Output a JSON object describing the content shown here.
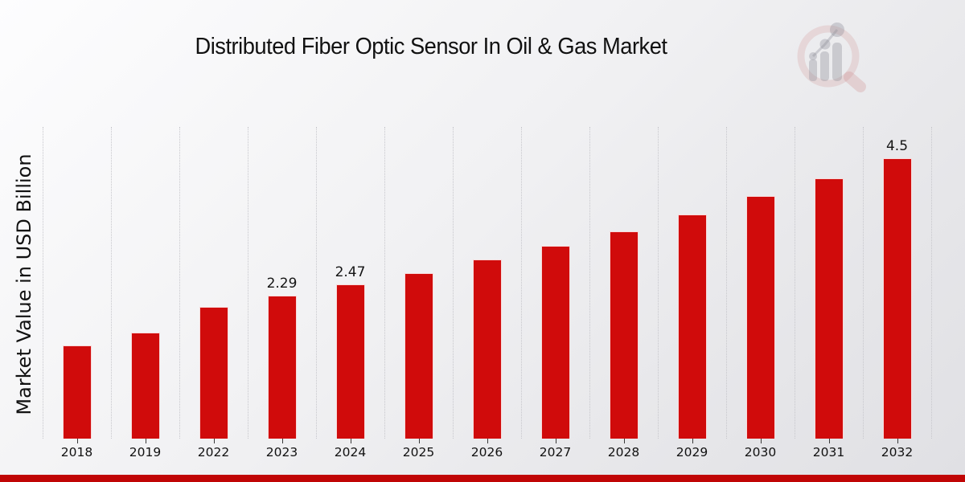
{
  "title": "Distributed Fiber Optic Sensor In Oil & Gas Market",
  "ylabel": "Market Value in USD Billion",
  "colors": {
    "bar": "#d00b0b",
    "bottom_strip": "#c00505",
    "gridline": "#c7c7cc",
    "title_text": "#111111"
  },
  "logo": {
    "name": "magnifier-bar-chart-watermark",
    "ring_color": "rgba(201,125,125,0.22)",
    "handle_color": "rgba(201,125,125,0.28)",
    "bars_color": "rgba(138,138,146,0.38)"
  },
  "chart_data": {
    "type": "bar",
    "title": "Distributed Fiber Optic Sensor In Oil & Gas Market",
    "xlabel": "",
    "ylabel": "Market Value in USD Billion",
    "categories": [
      "2018",
      "2019",
      "2022",
      "2023",
      "2024",
      "2025",
      "2026",
      "2027",
      "2028",
      "2029",
      "2030",
      "2031",
      "2032"
    ],
    "values": [
      1.49,
      1.7,
      2.12,
      2.29,
      2.47,
      2.66,
      2.87,
      3.09,
      3.33,
      3.6,
      3.89,
      4.18,
      4.5
    ],
    "data_labels": [
      "",
      "",
      "",
      "2.29",
      "2.47",
      "",
      "",
      "",
      "",
      "",
      "",
      "",
      "4.5"
    ],
    "ylim": [
      0,
      5
    ],
    "grid": "vertical-dotted-column-separators",
    "legend": "none",
    "bar_color": "#d00b0b",
    "value_unit": "USD Billion"
  }
}
